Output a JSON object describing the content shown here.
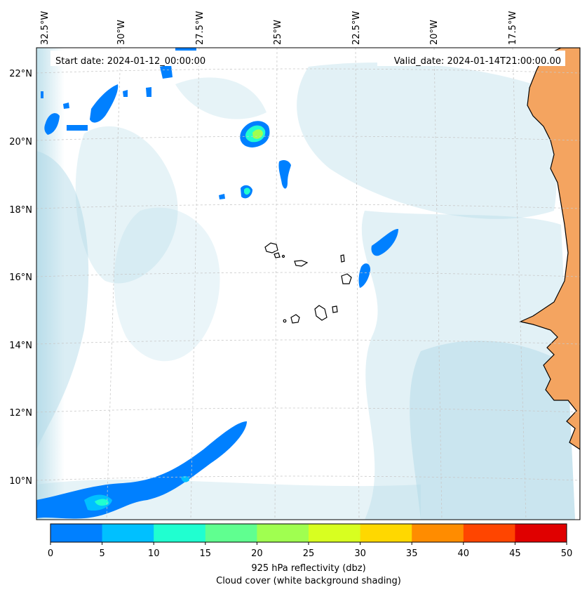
{
  "map": {
    "start_date": "Start date: 2024-01-12_00:00:00",
    "valid_date": "Valid_date: 2024-01-14T21:00:00.00",
    "lon_labels": [
      "32.5°W",
      "30°W",
      "27.5°W",
      "25°W",
      "22.5°W",
      "20°W",
      "17.5°W"
    ],
    "lat_labels": [
      "22°N",
      "20°N",
      "18°N",
      "16°N",
      "14°N",
      "12°N",
      "10°N"
    ],
    "ocean_color": "#ffffff",
    "cloud_color": "#add8e6",
    "land_color": "#f4a460",
    "coast_color": "#000000"
  },
  "colorbar": {
    "ticks": [
      "0",
      "5",
      "10",
      "15",
      "20",
      "25",
      "30",
      "35",
      "40",
      "45",
      "50"
    ],
    "colors": [
      "#0080ff",
      "#00c0ff",
      "#20ffd0",
      "#60ff90",
      "#a0ff50",
      "#d8ff20",
      "#ffd800",
      "#ff8c00",
      "#ff4500",
      "#e00000"
    ],
    "label": "925 hPa reflectivity (dbz)",
    "sublabel": "Cloud cover (white background shading)"
  }
}
